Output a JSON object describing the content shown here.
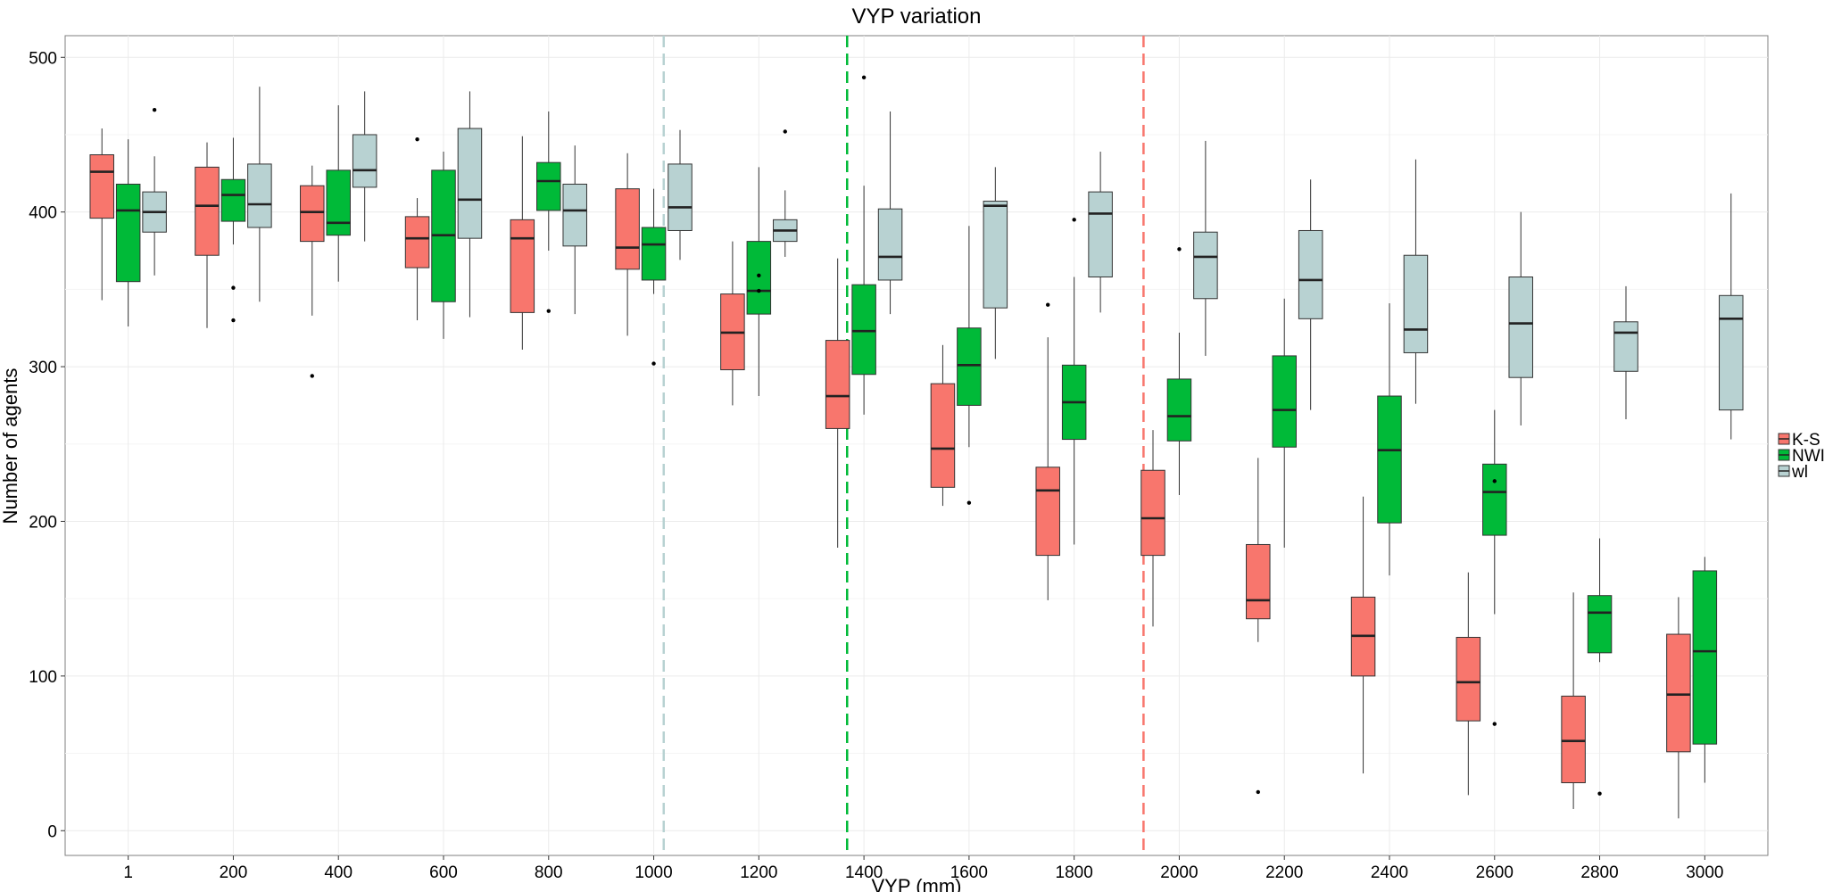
{
  "chart_data": {
    "type": "boxplot",
    "title": "VYP variation",
    "xlabel": "VYP (mm)",
    "ylabel": "Number of agents",
    "categories": [
      "1",
      "200",
      "400",
      "600",
      "800",
      "1000",
      "1200",
      "1400",
      "1600",
      "1800",
      "2000",
      "2200",
      "2400",
      "2600",
      "2800",
      "3000"
    ],
    "ylim": [
      -16,
      514
    ],
    "yticks": [
      0,
      100,
      200,
      300,
      400,
      500
    ],
    "grid": true,
    "legend_position": "right",
    "series": [
      {
        "name": "K-S",
        "color": "#F8766D",
        "boxes": [
          {
            "min": 343,
            "q1": 396,
            "median": 426,
            "q3": 437,
            "max": 454,
            "outliers": []
          },
          {
            "min": 325,
            "q1": 372,
            "median": 404,
            "q3": 429,
            "max": 445,
            "outliers": []
          },
          {
            "min": 333,
            "q1": 381,
            "median": 400,
            "q3": 417,
            "max": 430,
            "outliers": [
              294
            ]
          },
          {
            "min": 330,
            "q1": 364,
            "median": 383,
            "q3": 397,
            "max": 409,
            "outliers": [
              447
            ]
          },
          {
            "min": 311,
            "q1": 335,
            "median": 383,
            "q3": 395,
            "max": 449,
            "outliers": []
          },
          {
            "min": 320,
            "q1": 363,
            "median": 377,
            "q3": 415,
            "max": 438,
            "outliers": []
          },
          {
            "min": 275,
            "q1": 298,
            "median": 322,
            "q3": 347,
            "max": 381,
            "outliers": []
          },
          {
            "min": 183,
            "q1": 260,
            "median": 281,
            "q3": 317,
            "max": 370,
            "outliers": []
          },
          {
            "min": 210,
            "q1": 222,
            "median": 247,
            "q3": 289,
            "max": 314,
            "outliers": []
          },
          {
            "min": 149,
            "q1": 178,
            "median": 220,
            "q3": 235,
            "max": 319,
            "outliers": [
              340
            ]
          },
          {
            "min": 132,
            "q1": 178,
            "median": 202,
            "q3": 233,
            "max": 259,
            "outliers": []
          },
          {
            "min": 122,
            "q1": 137,
            "median": 149,
            "q3": 185,
            "max": 241,
            "outliers": [
              25
            ]
          },
          {
            "min": 37,
            "q1": 100,
            "median": 126,
            "q3": 151,
            "max": 216,
            "outliers": []
          },
          {
            "min": 23,
            "q1": 71,
            "median": 96,
            "q3": 125,
            "max": 167,
            "outliers": []
          },
          {
            "min": 14,
            "q1": 31,
            "median": 58,
            "q3": 87,
            "max": 154,
            "outliers": []
          },
          {
            "min": 8,
            "q1": 51,
            "median": 88,
            "q3": 127,
            "max": 151,
            "outliers": []
          }
        ]
      },
      {
        "name": "NWI",
        "color": "#00BA38",
        "boxes": [
          {
            "min": 326,
            "q1": 355,
            "median": 401,
            "q3": 418,
            "max": 447,
            "outliers": []
          },
          {
            "min": 379,
            "q1": 394,
            "median": 411,
            "q3": 421,
            "max": 448,
            "outliers": [
              351,
              330
            ]
          },
          {
            "min": 355,
            "q1": 385,
            "median": 393,
            "q3": 427,
            "max": 469,
            "outliers": []
          },
          {
            "min": 318,
            "q1": 342,
            "median": 385,
            "q3": 427,
            "max": 439,
            "outliers": []
          },
          {
            "min": 375,
            "q1": 401,
            "median": 420,
            "q3": 432,
            "max": 465,
            "outliers": [
              336
            ]
          },
          {
            "min": 347,
            "q1": 356,
            "median": 379,
            "q3": 390,
            "max": 415,
            "outliers": [
              302
            ]
          },
          {
            "min": 281,
            "q1": 334,
            "median": 349,
            "q3": 381,
            "max": 429,
            "outliers": [
              359,
              349
            ]
          },
          {
            "min": 269,
            "q1": 295,
            "median": 323,
            "q3": 353,
            "max": 417,
            "outliers": [
              487
            ]
          },
          {
            "min": 248,
            "q1": 275,
            "median": 301,
            "q3": 325,
            "max": 391,
            "outliers": [
              212
            ]
          },
          {
            "min": 185,
            "q1": 253,
            "median": 277,
            "q3": 301,
            "max": 358,
            "outliers": [
              395
            ]
          },
          {
            "min": 217,
            "q1": 252,
            "median": 268,
            "q3": 292,
            "max": 322,
            "outliers": [
              376
            ]
          },
          {
            "min": 183,
            "q1": 248,
            "median": 272,
            "q3": 307,
            "max": 344,
            "outliers": []
          },
          {
            "min": 165,
            "q1": 199,
            "median": 246,
            "q3": 281,
            "max": 341,
            "outliers": []
          },
          {
            "min": 140,
            "q1": 191,
            "median": 219,
            "q3": 237,
            "max": 272,
            "outliers": [
              226,
              69
            ]
          },
          {
            "min": 109,
            "q1": 115,
            "median": 141,
            "q3": 152,
            "max": 189,
            "outliers": [
              24
            ]
          },
          {
            "min": 31,
            "q1": 56,
            "median": 116,
            "q3": 168,
            "max": 177,
            "outliers": []
          }
        ]
      },
      {
        "name": "wl",
        "color": "#B8D2D2",
        "boxes": [
          {
            "min": 359,
            "q1": 387,
            "median": 400,
            "q3": 413,
            "max": 436,
            "outliers": [
              466
            ]
          },
          {
            "min": 342,
            "q1": 390,
            "median": 405,
            "q3": 431,
            "max": 481,
            "outliers": []
          },
          {
            "min": 381,
            "q1": 416,
            "median": 427,
            "q3": 450,
            "max": 478,
            "outliers": []
          },
          {
            "min": 332,
            "q1": 383,
            "median": 408,
            "q3": 454,
            "max": 478,
            "outliers": []
          },
          {
            "min": 334,
            "q1": 378,
            "median": 401,
            "q3": 418,
            "max": 443,
            "outliers": []
          },
          {
            "min": 369,
            "q1": 388,
            "median": 403,
            "q3": 431,
            "max": 453,
            "outliers": []
          },
          {
            "min": 371,
            "q1": 381,
            "median": 388,
            "q3": 395,
            "max": 414,
            "outliers": [
              452
            ]
          },
          {
            "min": 334,
            "q1": 356,
            "median": 371,
            "q3": 402,
            "max": 465,
            "outliers": []
          },
          {
            "min": 305,
            "q1": 338,
            "median": 404,
            "q3": 407,
            "max": 429,
            "outliers": []
          },
          {
            "min": 335,
            "q1": 358,
            "median": 399,
            "q3": 413,
            "max": 439,
            "outliers": []
          },
          {
            "min": 307,
            "q1": 344,
            "median": 371,
            "q3": 387,
            "max": 446,
            "outliers": []
          },
          {
            "min": 272,
            "q1": 331,
            "median": 356,
            "q3": 388,
            "max": 421,
            "outliers": []
          },
          {
            "min": 276,
            "q1": 309,
            "median": 324,
            "q3": 372,
            "max": 434,
            "outliers": []
          },
          {
            "min": 262,
            "q1": 293,
            "median": 328,
            "q3": 358,
            "max": 400,
            "outliers": []
          },
          {
            "min": 266,
            "q1": 297,
            "median": 322,
            "q3": 329,
            "max": 352,
            "outliers": []
          },
          {
            "min": 253,
            "q1": 272,
            "median": 331,
            "q3": 346,
            "max": 412,
            "outliers": []
          }
        ]
      }
    ],
    "reference_lines": [
      {
        "series": "wl",
        "x_value": 1019,
        "color": "#B8D2D2",
        "style": "dashed"
      },
      {
        "series": "NWI",
        "x_value": 1368,
        "color": "#00BA38",
        "style": "dashed"
      },
      {
        "series": "K-S",
        "x_value": 1932,
        "color": "#F8766D",
        "style": "dashed"
      }
    ]
  }
}
